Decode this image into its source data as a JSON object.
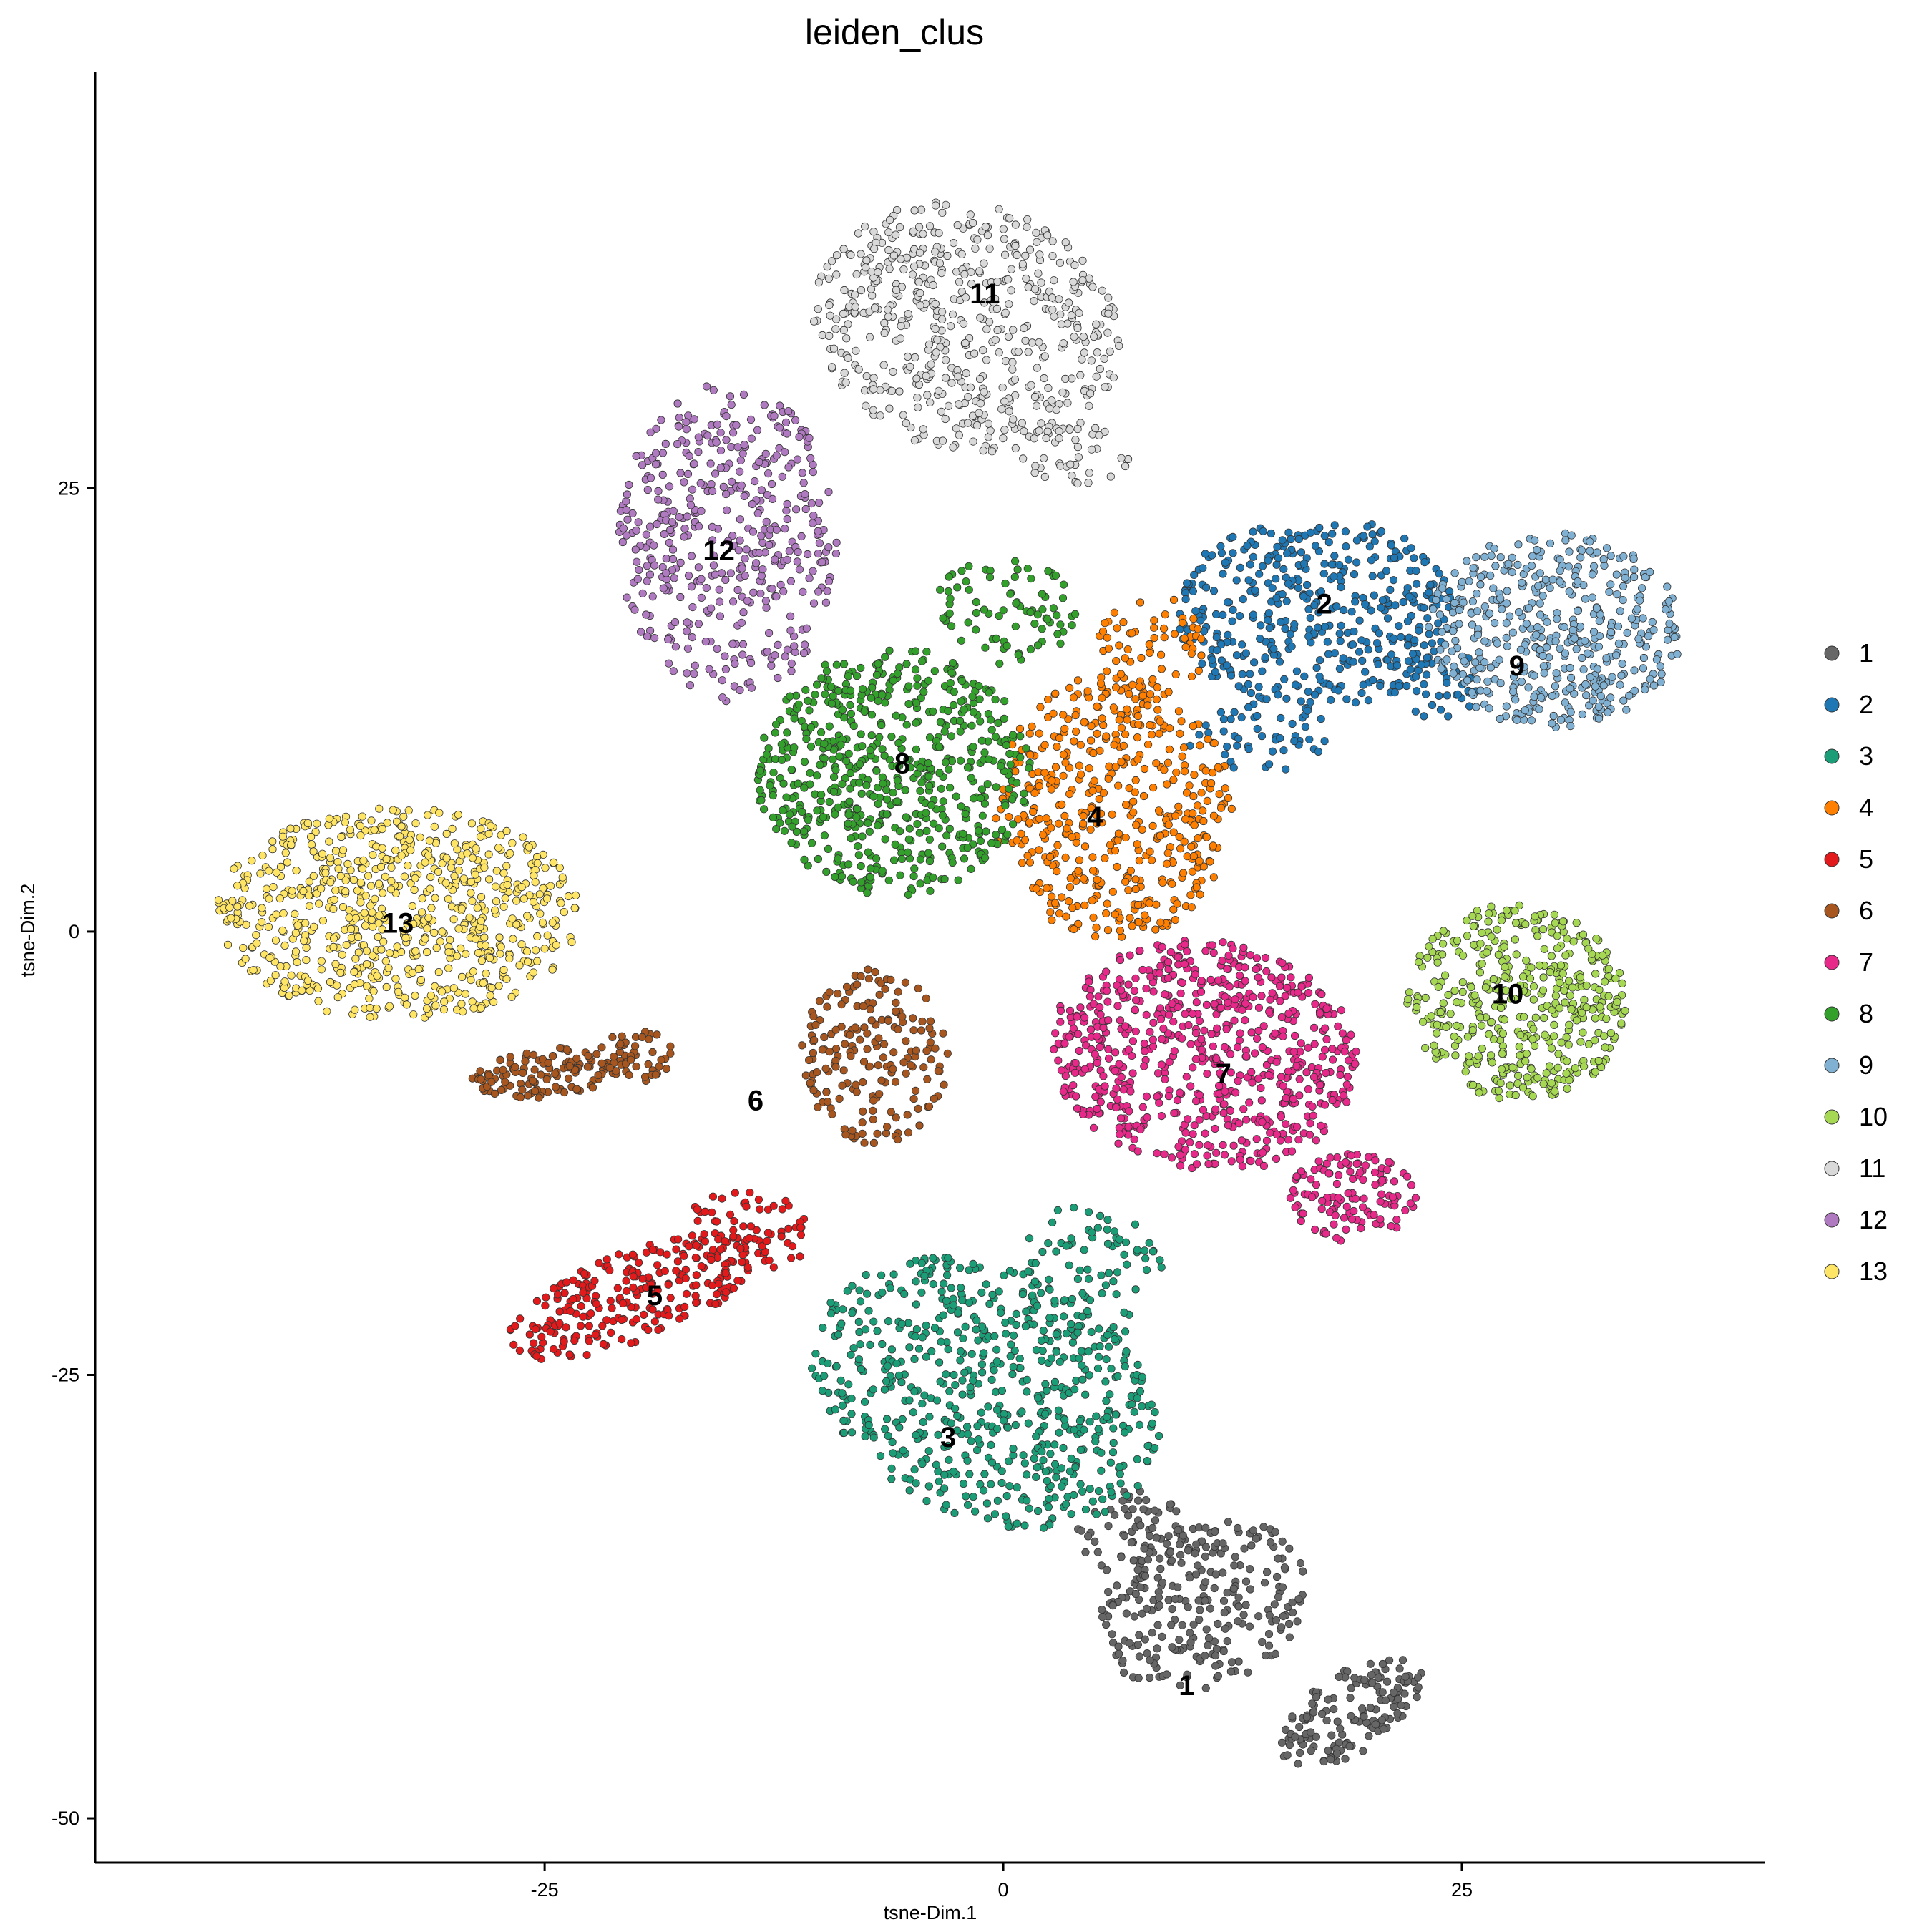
{
  "chart_data": {
    "type": "scatter",
    "title": "leiden_clus",
    "xlabel": "tsne-Dim.1",
    "ylabel": "tsne-Dim.2",
    "xlim": [
      -49.5,
      41.5
    ],
    "ylim": [
      -52.5,
      48.5
    ],
    "xticks": [
      -25,
      0,
      25
    ],
    "xtick_labels": [
      "-25",
      "0",
      "25"
    ],
    "yticks": [
      -50,
      -25,
      0,
      25
    ],
    "ytick_labels": [
      "-50",
      "-25",
      "0",
      "25"
    ],
    "grid": false,
    "legend_position": "right",
    "legend": [
      "1",
      "2",
      "3",
      "4",
      "5",
      "6",
      "7",
      "8",
      "9",
      "10",
      "11",
      "12",
      "13"
    ],
    "colors": [
      "#666666",
      "#1F78B4",
      "#1B9E77",
      "#FF7F00",
      "#E31A1C",
      "#A6561E",
      "#E7298A",
      "#33A02C",
      "#80B1D3",
      "#A6D854",
      "#D9D9D9",
      "#B07AC0",
      "#FFE566"
    ],
    "clusters": [
      {
        "name": "1",
        "label_pos": [
          10,
          -42.5
        ],
        "regions": [
          [
            11,
            -38,
            6,
            4.5,
            0.45,
            260
          ],
          [
            19,
            -44,
            4.5,
            2.2,
            0.6,
            150
          ],
          [
            7,
            -34,
            3,
            2.5,
            0,
            60
          ]
        ]
      },
      {
        "name": "2",
        "label_pos": [
          17.5,
          18.5
        ],
        "regions": [
          [
            17,
            18,
            7.5,
            5.5,
            0,
            420
          ],
          [
            24,
            14,
            3,
            2,
            0,
            40
          ],
          [
            14,
            11,
            4,
            2,
            0,
            50
          ]
        ]
      },
      {
        "name": "3",
        "label_pos": [
          -3,
          -28.5
        ],
        "regions": [
          [
            -1,
            -26,
            10,
            7,
            -0.45,
            620
          ],
          [
            5,
            -19,
            4,
            4,
            0,
            80
          ]
        ]
      },
      {
        "name": "4",
        "label_pos": [
          5,
          6.5
        ],
        "regions": [
          [
            6,
            7,
            6.5,
            7.5,
            0,
            480
          ],
          [
            8,
            16,
            3,
            3,
            0,
            60
          ]
        ]
      },
      {
        "name": "5",
        "label_pos": [
          -19,
          -20.5
        ],
        "regions": [
          [
            -20,
            -20.5,
            7.5,
            2.5,
            0.38,
            260
          ],
          [
            -14,
            -17,
            3.5,
            2.5,
            0,
            60
          ]
        ]
      },
      {
        "name": "6",
        "label_pos": [
          -13.5,
          -9.5
        ],
        "regions": [
          [
            -7,
            -7,
            4,
            5,
            0,
            190
          ],
          [
            -25,
            -8,
            4,
            1.4,
            0.1,
            120
          ],
          [
            -20,
            -7,
            2,
            1.5,
            0,
            50
          ]
        ]
      },
      {
        "name": "7",
        "label_pos": [
          12,
          -8
        ],
        "regions": [
          [
            11,
            -7,
            8.5,
            6.5,
            -0.15,
            700
          ],
          [
            19,
            -15,
            3.5,
            2.5,
            0,
            120
          ]
        ]
      },
      {
        "name": "8",
        "label_pos": [
          -5.5,
          9.5
        ],
        "regions": [
          [
            -6,
            9,
            7.5,
            7,
            0,
            620
          ],
          [
            0,
            18,
            4,
            3,
            0,
            80
          ]
        ]
      },
      {
        "name": "9",
        "label_pos": [
          28,
          15
        ],
        "regions": [
          [
            30,
            17,
            7,
            5.5,
            0,
            460
          ]
        ]
      },
      {
        "name": "10",
        "label_pos": [
          27.5,
          -3.5
        ],
        "regions": [
          [
            28,
            -4,
            6,
            5.5,
            -0.2,
            440
          ]
        ]
      },
      {
        "name": "11",
        "label_pos": [
          -1,
          36
        ],
        "regions": [
          [
            -2,
            34,
            8.5,
            7,
            -0.3,
            540
          ],
          [
            4,
            27,
            3,
            2,
            0,
            40
          ]
        ]
      },
      {
        "name": "12",
        "label_pos": [
          -15.5,
          21.5
        ],
        "regions": [
          [
            -15,
            22,
            6,
            9,
            0,
            440
          ]
        ]
      },
      {
        "name": "13",
        "label_pos": [
          -33,
          0.5
        ],
        "regions": [
          [
            -33,
            1,
            10,
            6,
            0,
            720
          ]
        ]
      }
    ]
  }
}
